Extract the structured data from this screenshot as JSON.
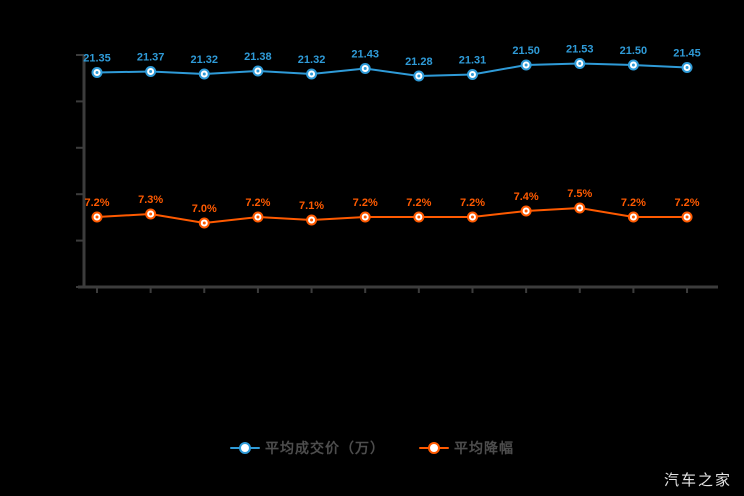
{
  "page": {
    "background": "#000000",
    "watermark": "汽车之家"
  },
  "colors": {
    "axis": "#3c3c3c",
    "series_blue": "#2f9bd8",
    "series_orange": "#ff5a00",
    "legend_text": "#4d4d4d",
    "watermark_text": "#e3e3e3",
    "marker_fill": "#ffffff"
  },
  "legend": {
    "items": [
      {
        "label": "平均成交价（万）",
        "color": "#2f9bd8"
      },
      {
        "label": "平均降幅",
        "color": "#ff5a00"
      }
    ]
  },
  "chart_data": {
    "type": "line",
    "title": "",
    "xlabel": "",
    "ylabel": "",
    "x_labels_visible": false,
    "y_labels_visible": false,
    "grid": false,
    "legend_position": "bottom",
    "point_count": 12,
    "axes": {
      "y_tick_count": 6,
      "x_tick_count": 12
    },
    "series": [
      {
        "name": "平均成交价（万）",
        "color": "#2f9bd8",
        "values": [
          21.35,
          21.37,
          21.32,
          21.38,
          21.32,
          21.43,
          21.28,
          21.31,
          21.5,
          21.53,
          21.5,
          21.45
        ],
        "labels": [
          "21.35",
          "21.37",
          "21.32",
          "21.38",
          "21.32",
          "21.43",
          "21.28",
          "21.31",
          "21.50",
          "21.53",
          "21.50",
          "21.45"
        ]
      },
      {
        "name": "平均降幅",
        "color": "#ff5a00",
        "values": [
          7.2,
          7.3,
          7.0,
          7.2,
          7.1,
          7.2,
          7.2,
          7.2,
          7.4,
          7.5,
          7.2,
          7.2
        ],
        "labels": [
          "7.2%",
          "7.3%",
          "7.0%",
          "7.2%",
          "7.1%",
          "7.2%",
          "7.2%",
          "7.2%",
          "7.4%",
          "7.5%",
          "7.2%",
          "7.2%"
        ]
      }
    ]
  }
}
